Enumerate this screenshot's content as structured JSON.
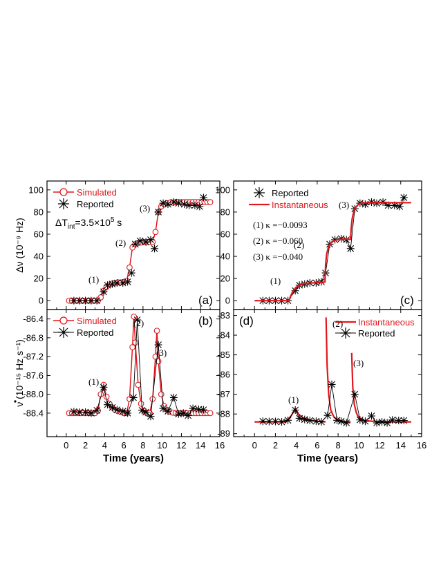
{
  "colors": {
    "simulated": "#e3161c",
    "reported": "#000000",
    "instantaneous": "#e3161c"
  },
  "xlabel": "Time (years)",
  "chart_data": [
    {
      "id": "a",
      "type": "line",
      "panel_label": "(a)",
      "ylabel": "Δν (10⁻⁹ Hz)",
      "xlim": [
        -2,
        16
      ],
      "ylim": [
        -8,
        108
      ],
      "xticks": [
        0,
        2,
        4,
        6,
        8,
        10,
        12,
        14,
        16
      ],
      "yticks": [
        0,
        20,
        40,
        60,
        80,
        100
      ],
      "ytick_labels": [
        "0",
        "20",
        "40",
        "60",
        "80",
        "100"
      ],
      "legend": {
        "simulated": "Simulated",
        "reported": "Reported"
      },
      "annotation_text": "ΔT",
      "annotation_sub": "int",
      "annotation_rest": "=3.5×10",
      "annotation_sup": "5",
      "annotation_unit": " s",
      "glitch_labels": [
        "(1)",
        "(2)",
        "(3)"
      ],
      "series": [
        {
          "name": "Simulated",
          "style": "circles-line",
          "x": [
            0.3,
            0.6,
            0.9,
            1.2,
            1.5,
            1.8,
            2.1,
            2.4,
            2.7,
            3.0,
            3.3,
            3.6,
            3.9,
            4.2,
            4.5,
            4.8,
            5.1,
            5.4,
            5.7,
            6.0,
            6.3,
            6.6,
            6.9,
            7.2,
            7.5,
            7.8,
            8.1,
            8.4,
            8.7,
            9.0,
            9.3,
            9.6,
            9.9,
            10.2,
            10.5,
            10.8,
            11.1,
            11.4,
            11.7,
            12.0,
            12.3,
            12.6,
            12.9,
            13.2,
            13.5,
            13.8,
            14.1,
            14.4,
            14.7,
            15.0
          ],
          "y": [
            0,
            0,
            0,
            0,
            0,
            0,
            0,
            0,
            0,
            0,
            0,
            3,
            9,
            12.5,
            14.5,
            15.5,
            16,
            16.5,
            16.5,
            17,
            18,
            30,
            48,
            51,
            52,
            52.5,
            53,
            53,
            53,
            53,
            62,
            80,
            85,
            87,
            88,
            88.5,
            88.5,
            89,
            89,
            89,
            89,
            89,
            89,
            89,
            89,
            89,
            89,
            89,
            89,
            89
          ]
        },
        {
          "name": "Reported",
          "style": "stars",
          "x": [
            0.8,
            1.4,
            2.0,
            2.6,
            3.2,
            3.9,
            4.3,
            4.8,
            5.3,
            5.9,
            6.4,
            6.8,
            7.2,
            7.7,
            8.3,
            8.8,
            9.2,
            9.6,
            10.1,
            10.6,
            11.2,
            11.7,
            12.3,
            12.8,
            13.4,
            13.9,
            14.3
          ],
          "y": [
            0,
            0,
            0,
            0,
            0,
            8,
            14,
            15,
            16,
            16,
            17,
            25,
            51,
            54,
            53,
            55,
            47,
            80,
            88,
            87,
            89,
            88,
            87,
            86,
            86,
            85,
            93
          ]
        }
      ]
    },
    {
      "id": "b",
      "type": "line",
      "panel_label": "(b)",
      "ylabel_main": "ν",
      "ylabel_rest": " (10⁻¹⁵ Hz s⁻¹)",
      "xlim": [
        -2,
        16
      ],
      "ylim": [
        -88.9,
        -86.2
      ],
      "xticks": [
        0,
        2,
        4,
        6,
        8,
        10,
        12,
        14,
        16
      ],
      "yticks": [
        -88.4,
        -88.0,
        -87.6,
        -87.2,
        -86.8,
        -86.4
      ],
      "ytick_labels": [
        "-88.4",
        "-88.0",
        "-87.6",
        "-87.2",
        "-86.8",
        "-86.4"
      ],
      "legend": {
        "simulated": "Simulated",
        "reported": "Reported"
      },
      "glitch_labels": [
        "(1)",
        "(2)",
        "(3)"
      ],
      "series": [
        {
          "name": "Simulated",
          "style": "circles-line",
          "x": [
            0.3,
            0.6,
            0.9,
            1.2,
            1.5,
            1.8,
            2.1,
            2.4,
            2.7,
            3.0,
            3.3,
            3.6,
            3.9,
            4.2,
            4.5,
            4.8,
            5.1,
            5.4,
            5.7,
            6.0,
            6.3,
            6.6,
            6.9,
            7.05,
            7.2,
            7.5,
            7.8,
            8.1,
            8.4,
            8.7,
            9.0,
            9.3,
            9.45,
            9.6,
            9.9,
            10.2,
            10.5,
            10.8,
            11.1,
            11.4,
            11.7,
            12.0,
            12.3,
            12.6,
            12.9,
            13.2,
            13.5,
            13.8,
            14.1,
            14.4,
            14.7,
            15.0
          ],
          "y": [
            -88.4,
            -88.4,
            -88.4,
            -88.4,
            -88.4,
            -88.4,
            -88.4,
            -88.4,
            -88.4,
            -88.4,
            -88.35,
            -88.0,
            -87.8,
            -88.05,
            -88.2,
            -88.28,
            -88.33,
            -88.36,
            -88.38,
            -88.4,
            -88.4,
            -88.1,
            -87.0,
            -86.35,
            -86.9,
            -87.8,
            -88.2,
            -88.35,
            -88.4,
            -88.4,
            -88.1,
            -87.2,
            -86.65,
            -87.3,
            -88.0,
            -88.25,
            -88.33,
            -88.37,
            -88.39,
            -88.4,
            -88.4,
            -88.4,
            -88.4,
            -88.4,
            -88.4,
            -88.4,
            -88.4,
            -88.4,
            -88.4,
            -88.4,
            -88.4,
            -88.4
          ]
        },
        {
          "name": "Reported",
          "style": "stars-line",
          "x": [
            0.8,
            1.4,
            2.0,
            2.6,
            3.2,
            3.9,
            4.3,
            4.8,
            5.3,
            5.9,
            6.4,
            7.0,
            7.4,
            7.9,
            8.3,
            8.8,
            9.6,
            10.1,
            10.6,
            11.2,
            11.7,
            12.2,
            12.7,
            13.2,
            13.8,
            14.3
          ],
          "y": [
            -88.37,
            -88.38,
            -88.38,
            -88.4,
            -88.34,
            -87.85,
            -88.22,
            -88.28,
            -88.33,
            -88.36,
            -88.4,
            -88.07,
            -86.42,
            -88.34,
            -88.38,
            -88.47,
            -86.95,
            -88.3,
            -88.36,
            -88.07,
            -88.42,
            -88.4,
            -88.45,
            -88.3,
            -88.32,
            -88.33
          ]
        }
      ]
    },
    {
      "id": "c",
      "type": "line",
      "panel_label": "(c)",
      "xlim": [
        -2,
        16
      ],
      "ylim": [
        -8,
        108
      ],
      "xticks": [
        0,
        2,
        4,
        6,
        8,
        10,
        12,
        14,
        16
      ],
      "yticks": [
        0,
        20,
        40,
        60,
        80,
        100
      ],
      "ytick_labels": [
        "0",
        "20",
        "40",
        "60",
        "80",
        "100"
      ],
      "legend": {
        "reported": "Reported",
        "instantaneous": "Instantaneous"
      },
      "kappa_labels": [
        "(1) κ =−0.0093",
        "(2) κ =−0.060",
        "(3) κ =−0.040"
      ],
      "glitch_labels": [
        "(1)",
        "(2)",
        "(3)"
      ],
      "series": [
        {
          "name": "Reported",
          "style": "stars-line",
          "x": [
            0.8,
            1.4,
            2.0,
            2.6,
            3.2,
            3.9,
            4.3,
            4.8,
            5.3,
            5.9,
            6.4,
            6.8,
            7.2,
            7.7,
            8.3,
            8.8,
            9.2,
            9.6,
            10.1,
            10.6,
            11.2,
            11.7,
            12.3,
            12.8,
            13.4,
            13.9,
            14.3
          ],
          "y": [
            0,
            0,
            0,
            0,
            0,
            9,
            14,
            15,
            16,
            16,
            17,
            25,
            51,
            55,
            56,
            55,
            47,
            83,
            88,
            87,
            89,
            88,
            89,
            86,
            86,
            85,
            93
          ]
        },
        {
          "name": "Instantaneous",
          "style": "line",
          "x": [
            0,
            0.5,
            1,
            1.5,
            2,
            2.5,
            3,
            3.3,
            3.45,
            3.6,
            3.75,
            3.9,
            4.1,
            4.4,
            4.8,
            5.5,
            6.2,
            6.75,
            6.8,
            6.9,
            7.05,
            7.2,
            7.4,
            7.6,
            7.9,
            8.3,
            8.8,
            9.2,
            9.25,
            9.35,
            9.5,
            9.7,
            9.95,
            10.3,
            10.8,
            11.5,
            12.5,
            13.5,
            15
          ],
          "y": [
            0,
            0,
            0,
            0,
            0,
            0,
            0,
            0,
            4,
            7,
            9.5,
            11,
            13,
            14.5,
            15.5,
            16,
            16.5,
            16.8,
            32,
            42,
            47.5,
            50.5,
            53,
            54,
            55,
            55.5,
            55.5,
            55.5,
            65,
            74,
            80.5,
            84.5,
            87,
            88,
            88.5,
            88.5,
            88.5,
            88.5,
            88.5
          ]
        }
      ]
    },
    {
      "id": "d",
      "type": "line",
      "panel_label": "(d)",
      "xlim": [
        -2,
        16
      ],
      "ylim": [
        -89.15,
        -82.7
      ],
      "xticks": [
        0,
        2,
        4,
        6,
        8,
        10,
        12,
        14,
        16
      ],
      "yticks": [
        -89,
        -88,
        -87,
        -86,
        -85,
        -84,
        -83
      ],
      "ytick_labels": [
        "-89",
        "-88",
        "-87",
        "-86",
        "-85",
        "-84",
        "-83"
      ],
      "legend": {
        "instantaneous": "Instantaneous",
        "reported": "Reported"
      },
      "glitch_labels": [
        "(1)",
        "(2)",
        "(3)"
      ],
      "series": [
        {
          "name": "Instantaneous",
          "style": "line-segments",
          "segments": [
            {
              "x": [
                0,
                1,
                2,
                3,
                3.5,
                3.9
              ],
              "y": [
                -88.4,
                -88.4,
                -88.4,
                -88.4,
                -88.1,
                -87.72
              ]
            },
            {
              "x": [
                3.9,
                4.2,
                4.6,
                5.2,
                6.0,
                6.8
              ],
              "y": [
                -87.72,
                -88.0,
                -88.18,
                -88.3,
                -88.37,
                -88.4
              ]
            },
            {
              "x": [
                6.85,
                6.95,
                7.1,
                7.3,
                7.6,
                8.0,
                8.6,
                9.2
              ],
              "y": [
                -83.1,
                -85.5,
                -87.0,
                -87.8,
                -88.15,
                -88.32,
                -88.4,
                -88.4
              ]
            },
            {
              "x": [
                9.3,
                9.4,
                9.55,
                9.75,
                10.0,
                10.5,
                11.5,
                13,
                15
              ],
              "y": [
                -84.9,
                -86.6,
                -87.5,
                -87.95,
                -88.2,
                -88.33,
                -88.38,
                -88.4,
                -88.4
              ]
            }
          ]
        },
        {
          "name": "Reported",
          "style": "stars-line",
          "x": [
            0.8,
            1.4,
            2.0,
            2.6,
            3.2,
            3.9,
            4.3,
            4.8,
            5.3,
            5.9,
            6.4,
            7.0,
            7.4,
            7.9,
            8.3,
            8.8,
            9.6,
            10.1,
            10.6,
            11.2,
            11.7,
            12.2,
            12.7,
            13.2,
            13.8,
            14.3
          ],
          "y": [
            -88.37,
            -88.38,
            -88.38,
            -88.4,
            -88.32,
            -87.8,
            -88.22,
            -88.28,
            -88.33,
            -88.37,
            -88.4,
            -88.07,
            -86.5,
            -88.32,
            -88.37,
            -88.45,
            -87.0,
            -88.3,
            -88.37,
            -88.1,
            -88.45,
            -88.4,
            -88.45,
            -88.3,
            -88.33,
            -88.33
          ]
        }
      ]
    }
  ]
}
